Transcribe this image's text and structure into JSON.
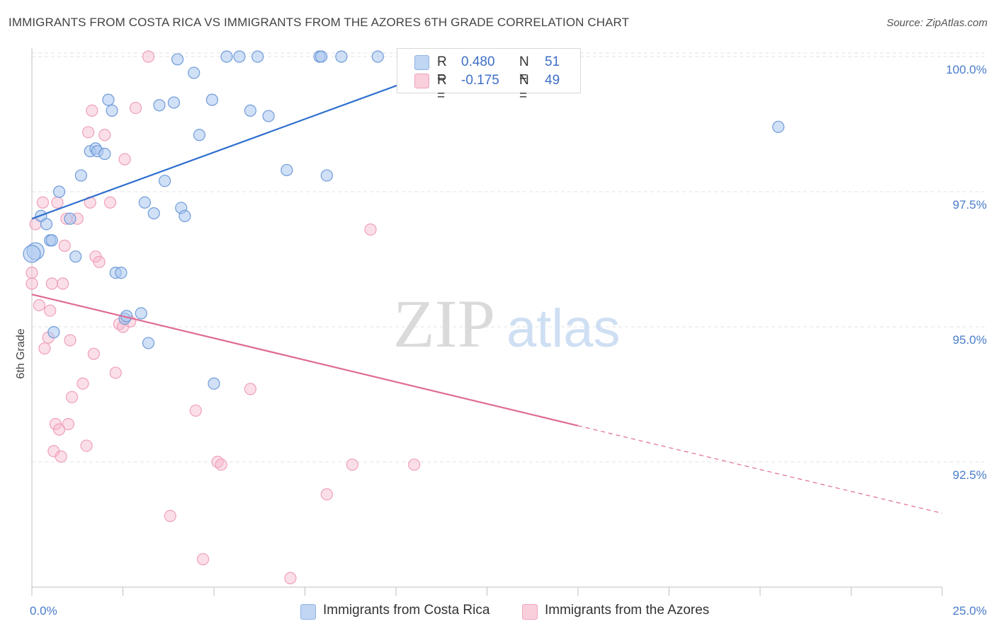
{
  "header": {
    "title": "IMMIGRANTS FROM COSTA RICA VS IMMIGRANTS FROM THE AZORES 6TH GRADE CORRELATION CHART",
    "source": "Source: ZipAtlas.com"
  },
  "watermark": {
    "zip": "ZIP",
    "atlas": "atlas"
  },
  "legend": {
    "r_label": "R =",
    "n_label": "N =",
    "series": [
      {
        "r": "0.480",
        "n": "51",
        "color": "#a9c6ee"
      },
      {
        "r": "-0.175",
        "n": "49",
        "color": "#f6b8cb"
      }
    ]
  },
  "bottom_legend": {
    "items": [
      {
        "label": "Immigrants from Costa Rica",
        "color": "#a9c6ee"
      },
      {
        "label": "Immigrants from the Azores",
        "color": "#f6b8cb"
      }
    ]
  },
  "colors": {
    "blue_fill": "#a9c6ee",
    "blue_line": "#2f6fcf",
    "pink_fill": "#f6b8cb",
    "pink_line": "#e06b95",
    "accent_text": "#4a7cc9"
  },
  "chart_data": {
    "type": "scatter",
    "title": "IMMIGRANTS FROM COSTA RICA VS IMMIGRANTS FROM THE AZORES 6TH GRADE CORRELATION CHART",
    "xlabel": "",
    "ylabel": "6th Grade",
    "xlim": [
      0,
      25
    ],
    "ylim": [
      90.0,
      100.2
    ],
    "x_tick_labels": [
      "0.0%",
      "25.0%"
    ],
    "y_ticks": [
      92.5,
      95.0,
      97.5,
      100.0
    ],
    "y_tick_labels": [
      "92.5%",
      "95.0%",
      "97.5%",
      "100.0%"
    ],
    "grid": true,
    "series": [
      {
        "name": "Immigrants from Costa Rica",
        "color": "#a9c6ee",
        "trend": {
          "x": [
            0,
            12.2
          ],
          "y": [
            97.0,
            100.0
          ],
          "style": "solid"
        },
        "points": [
          [
            0.1,
            96.4
          ],
          [
            0.0,
            96.35
          ],
          [
            0.25,
            97.05
          ],
          [
            0.4,
            96.9
          ],
          [
            0.5,
            96.6
          ],
          [
            0.55,
            96.6
          ],
          [
            0.75,
            97.5
          ],
          [
            1.05,
            97.0
          ],
          [
            1.2,
            96.3
          ],
          [
            1.35,
            97.8
          ],
          [
            1.6,
            98.25
          ],
          [
            1.75,
            98.3
          ],
          [
            1.8,
            98.25
          ],
          [
            2.0,
            98.2
          ],
          [
            2.1,
            99.2
          ],
          [
            2.2,
            99.0
          ],
          [
            2.3,
            96.0
          ],
          [
            2.45,
            96.0
          ],
          [
            2.55,
            95.15
          ],
          [
            2.6,
            95.2
          ],
          [
            3.0,
            95.25
          ],
          [
            3.2,
            94.7
          ],
          [
            3.1,
            97.3
          ],
          [
            3.35,
            97.1
          ],
          [
            3.5,
            99.1
          ],
          [
            3.65,
            97.7
          ],
          [
            3.9,
            99.15
          ],
          [
            4.0,
            99.95
          ],
          [
            4.1,
            97.2
          ],
          [
            4.2,
            97.05
          ],
          [
            4.45,
            99.7
          ],
          [
            4.6,
            98.55
          ],
          [
            4.95,
            99.2
          ],
          [
            5.0,
            93.95
          ],
          [
            5.35,
            100.0
          ],
          [
            5.7,
            100.0
          ],
          [
            6.0,
            99.0
          ],
          [
            6.2,
            100.0
          ],
          [
            6.5,
            98.9
          ],
          [
            7.0,
            97.9
          ],
          [
            7.9,
            100.0
          ],
          [
            7.95,
            100.0
          ],
          [
            8.1,
            97.8
          ],
          [
            8.5,
            100.0
          ],
          [
            9.5,
            100.0
          ],
          [
            10.7,
            100.0
          ],
          [
            11.0,
            100.0
          ],
          [
            11.1,
            99.95
          ],
          [
            12.2,
            100.0
          ],
          [
            20.5,
            98.7
          ],
          [
            0.6,
            94.9
          ]
        ]
      },
      {
        "name": "Immigrants from the Azores",
        "color": "#f6b8cb",
        "trend": {
          "x": [
            0,
            25
          ],
          "y": [
            95.6,
            91.55
          ],
          "solid_until_x": 15.0
        },
        "points": [
          [
            0.0,
            96.0
          ],
          [
            0.0,
            95.8
          ],
          [
            0.1,
            96.9
          ],
          [
            0.2,
            95.4
          ],
          [
            0.3,
            97.3
          ],
          [
            0.35,
            94.6
          ],
          [
            0.45,
            94.8
          ],
          [
            0.5,
            95.3
          ],
          [
            0.55,
            95.8
          ],
          [
            0.6,
            92.7
          ],
          [
            0.7,
            97.3
          ],
          [
            0.65,
            93.2
          ],
          [
            0.75,
            93.1
          ],
          [
            0.8,
            92.6
          ],
          [
            0.85,
            95.8
          ],
          [
            0.9,
            96.5
          ],
          [
            0.95,
            97.0
          ],
          [
            1.0,
            93.2
          ],
          [
            1.05,
            94.75
          ],
          [
            1.1,
            93.7
          ],
          [
            1.25,
            97.0
          ],
          [
            1.4,
            93.95
          ],
          [
            1.5,
            92.8
          ],
          [
            1.55,
            98.6
          ],
          [
            1.6,
            97.3
          ],
          [
            1.65,
            99.0
          ],
          [
            1.7,
            94.5
          ],
          [
            1.75,
            96.3
          ],
          [
            1.85,
            96.2
          ],
          [
            2.0,
            98.55
          ],
          [
            2.15,
            97.3
          ],
          [
            2.3,
            94.15
          ],
          [
            2.4,
            95.05
          ],
          [
            2.5,
            95.0
          ],
          [
            2.55,
            98.1
          ],
          [
            2.7,
            95.1
          ],
          [
            2.85,
            99.05
          ],
          [
            3.2,
            100.0
          ],
          [
            3.8,
            91.5
          ],
          [
            4.5,
            93.45
          ],
          [
            4.7,
            90.7
          ],
          [
            5.1,
            92.5
          ],
          [
            5.2,
            92.45
          ],
          [
            6.0,
            93.85
          ],
          [
            7.1,
            90.35
          ],
          [
            8.1,
            91.9
          ],
          [
            8.8,
            92.45
          ],
          [
            9.3,
            96.8
          ],
          [
            10.5,
            92.45
          ]
        ]
      }
    ]
  }
}
